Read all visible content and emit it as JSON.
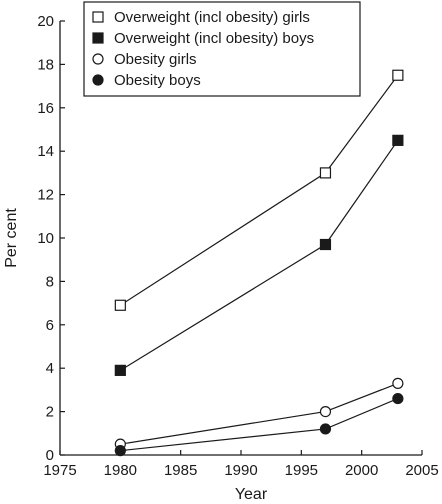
{
  "chart_data": {
    "type": "line",
    "xlabel": "Year",
    "ylabel": "Per cent",
    "xlim": [
      1975,
      2005
    ],
    "ylim": [
      0,
      20
    ],
    "xticks": [
      1975,
      1980,
      1985,
      1990,
      1995,
      2000,
      2005
    ],
    "yticks": [
      0,
      2,
      4,
      6,
      8,
      10,
      12,
      14,
      16,
      18,
      20
    ],
    "grid": false,
    "legend_position": "top-left",
    "series": [
      {
        "name": "Overweight (incl obesity) girls",
        "marker": "open-square",
        "x": [
          1980,
          1997,
          2003
        ],
        "y": [
          6.9,
          13.0,
          17.5
        ]
      },
      {
        "name": "Overweight (incl obesity) boys",
        "marker": "filled-square",
        "x": [
          1980,
          1997,
          2003
        ],
        "y": [
          3.9,
          9.7,
          14.5
        ]
      },
      {
        "name": "Obesity girls",
        "marker": "open-circle",
        "x": [
          1980,
          1997,
          2003
        ],
        "y": [
          0.5,
          2.0,
          3.3
        ]
      },
      {
        "name": "Obesity boys",
        "marker": "filled-circle",
        "x": [
          1980,
          1997,
          2003
        ],
        "y": [
          0.2,
          1.2,
          2.6
        ]
      }
    ]
  }
}
